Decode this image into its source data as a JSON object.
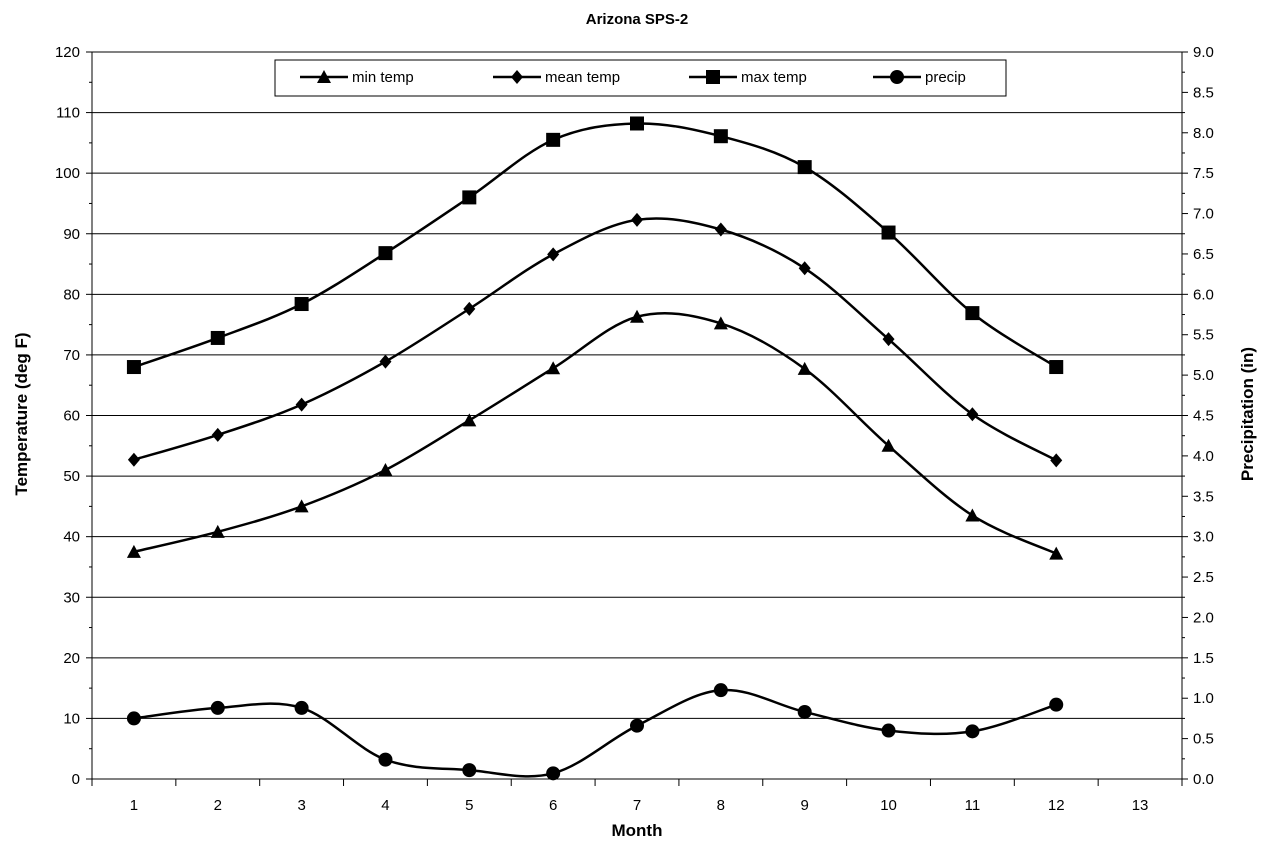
{
  "chart_data": {
    "type": "line",
    "title": "Arizona SPS-2",
    "xlabel": "Month",
    "ylabel": "Temperature (deg F)",
    "y2label": "Precipitation (in)",
    "xlim": [
      0.5,
      13.5
    ],
    "x_ticks": [
      "1",
      "2",
      "3",
      "4",
      "5",
      "6",
      "7",
      "8",
      "9",
      "10",
      "11",
      "12",
      "13"
    ],
    "ylim": [
      0,
      120
    ],
    "y_ticks": [
      "0",
      "10",
      "20",
      "30",
      "40",
      "50",
      "60",
      "70",
      "80",
      "90",
      "100",
      "110",
      "120"
    ],
    "y2lim": [
      0,
      9
    ],
    "y2_ticks": [
      "0.0",
      "0.5",
      "1.0",
      "1.5",
      "2.0",
      "2.5",
      "3.0",
      "3.5",
      "4.0",
      "4.5",
      "5.0",
      "5.5",
      "6.0",
      "6.5",
      "7.0",
      "7.5",
      "8.0",
      "8.5",
      "9.0"
    ],
    "grid": "horizontal major gridlines",
    "legend_position": "top-center",
    "x": [
      1,
      2,
      3,
      4,
      5,
      6,
      7,
      8,
      9,
      10,
      11,
      12
    ],
    "series": [
      {
        "name": "min temp",
        "axis": "left",
        "marker": "triangle",
        "values": [
          37.5,
          40.8,
          45.0,
          51.0,
          59.2,
          67.8,
          76.3,
          75.2,
          67.7,
          55.0,
          43.5,
          37.2
        ]
      },
      {
        "name": "mean temp",
        "axis": "left",
        "marker": "diamond",
        "values": [
          52.7,
          56.8,
          61.8,
          68.9,
          77.6,
          86.6,
          92.3,
          90.7,
          84.3,
          72.6,
          60.2,
          52.6
        ]
      },
      {
        "name": "max temp",
        "axis": "left",
        "marker": "square",
        "values": [
          68.0,
          72.8,
          78.4,
          86.8,
          96.0,
          105.5,
          108.2,
          106.1,
          101.0,
          90.2,
          76.9,
          68.0
        ]
      },
      {
        "name": "precip",
        "axis": "right",
        "marker": "circle",
        "values": [
          0.75,
          0.88,
          0.88,
          0.24,
          0.11,
          0.07,
          0.66,
          1.1,
          0.83,
          0.6,
          0.59,
          0.92
        ]
      }
    ]
  }
}
